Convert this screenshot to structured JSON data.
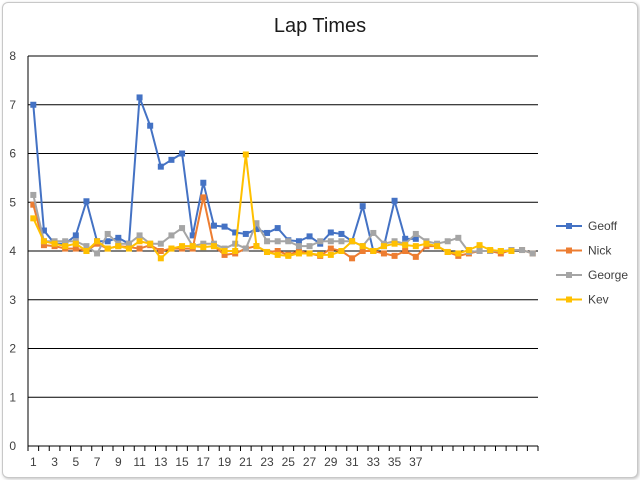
{
  "chart_data": {
    "type": "line",
    "title": "Lap Times",
    "xlabel": "",
    "ylabel": "",
    "ylim": [
      0,
      8
    ],
    "y_ticks": [
      0,
      1,
      2,
      3,
      4,
      5,
      6,
      7,
      8
    ],
    "x_count": 48,
    "x_tick_labels": [
      1,
      3,
      5,
      7,
      9,
      11,
      13,
      15,
      17,
      19,
      21,
      23,
      25,
      27,
      29,
      31,
      33,
      35,
      37
    ],
    "grid": true,
    "legend": "right",
    "colors": {
      "Geoff": "#4472c4",
      "Nick": "#ed7d31",
      "George": "#a5a5a5",
      "Kev": "#ffc000",
      "grid": "#000000"
    },
    "series": [
      {
        "name": "Geoff",
        "values": [
          7.0,
          4.42,
          4.15,
          4.15,
          4.32,
          5.02,
          4.2,
          4.2,
          4.27,
          4.15,
          7.15,
          6.57,
          5.73,
          5.87,
          6.0,
          4.32,
          5.4,
          4.52,
          4.5,
          4.38,
          4.35,
          4.45,
          4.37,
          4.47,
          4.22,
          4.2,
          4.3,
          4.15,
          4.38,
          4.35,
          4.2,
          4.92,
          4.0,
          4.1,
          5.03,
          4.25,
          4.25,
          null,
          null,
          null,
          null,
          null,
          null,
          null,
          null,
          null,
          null,
          null
        ]
      },
      {
        "name": "Nick",
        "values": [
          4.95,
          4.12,
          4.1,
          4.05,
          4.05,
          4.0,
          4.15,
          4.05,
          4.1,
          4.08,
          4.05,
          4.12,
          4.0,
          4.05,
          4.05,
          4.05,
          5.1,
          4.1,
          3.92,
          3.95,
          4.05,
          4.1,
          3.98,
          4.0,
          3.92,
          4.0,
          3.95,
          3.9,
          4.05,
          4.0,
          3.85,
          4.0,
          4.0,
          3.95,
          3.9,
          4.0,
          3.88,
          4.1,
          4.1,
          3.98,
          3.9,
          3.95,
          4.0,
          4.0,
          3.95,
          4.02,
          4.02,
          3.95
        ]
      },
      {
        "name": "George",
        "values": [
          5.15,
          4.2,
          4.2,
          4.2,
          4.2,
          4.1,
          3.95,
          4.35,
          4.15,
          4.15,
          4.32,
          4.15,
          4.15,
          4.32,
          4.47,
          4.1,
          4.15,
          4.15,
          4.05,
          4.15,
          4.05,
          4.57,
          4.2,
          4.2,
          4.2,
          4.1,
          4.1,
          4.2,
          4.2,
          4.2,
          4.2,
          4.1,
          4.37,
          4.15,
          4.2,
          4.15,
          4.35,
          4.2,
          4.15,
          4.2,
          4.27,
          3.98,
          4.0,
          4.0,
          4.0,
          4.02,
          4.02,
          3.95
        ]
      },
      {
        "name": "Kev",
        "values": [
          4.67,
          4.2,
          4.15,
          4.1,
          4.15,
          4.0,
          4.2,
          4.05,
          4.1,
          4.05,
          4.2,
          4.15,
          3.85,
          4.05,
          4.1,
          4.1,
          4.08,
          4.1,
          4.0,
          4.0,
          5.98,
          4.1,
          3.98,
          3.92,
          3.9,
          3.95,
          3.95,
          3.92,
          3.92,
          4.0,
          4.2,
          4.1,
          4.0,
          4.1,
          4.15,
          4.12,
          4.1,
          4.15,
          4.1,
          3.98,
          3.95,
          4.02,
          4.12,
          4.02,
          4.0,
          4.0,
          null,
          null
        ]
      }
    ]
  }
}
